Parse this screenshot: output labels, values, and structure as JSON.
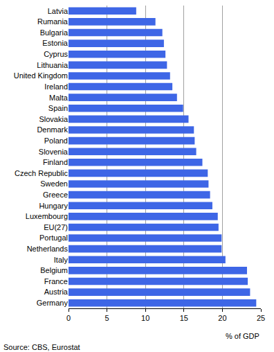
{
  "chart_data": {
    "type": "bar",
    "orientation": "horizontal",
    "x_label": "% of GDP",
    "annotations": [
      "Source: CBS, Eurostat"
    ],
    "categories": [
      "Latvia",
      "Rumania",
      "Bulgaria",
      "Estonia",
      "Cyprus",
      "Lithuania",
      "United Kingdom",
      "Ireland",
      "Malta",
      "Spain",
      "Slovakia",
      "Denmark",
      "Poland",
      "Slovenia",
      "Finland",
      "Czech Republic",
      "Sweden",
      "Greece",
      "Hungary",
      "Luxembourg",
      "EU(27)",
      "Portugal",
      "Netherlands",
      "Italy",
      "Belgium",
      "France",
      "Austria",
      "Germany"
    ],
    "values": [
      8.8,
      11.3,
      12.2,
      12.4,
      12.6,
      12.8,
      13.2,
      13.5,
      14.1,
      14.9,
      15.6,
      16.3,
      16.4,
      16.6,
      17.4,
      18.1,
      18.2,
      18.4,
      18.7,
      19.4,
      19.5,
      19.9,
      19.9,
      20.4,
      23.2,
      23.3,
      23.6,
      24.4
    ],
    "color": "#3e66e6",
    "xlim": [
      0,
      25
    ],
    "xticks": [
      0,
      5,
      10,
      15,
      20,
      25
    ],
    "grid": true
  }
}
